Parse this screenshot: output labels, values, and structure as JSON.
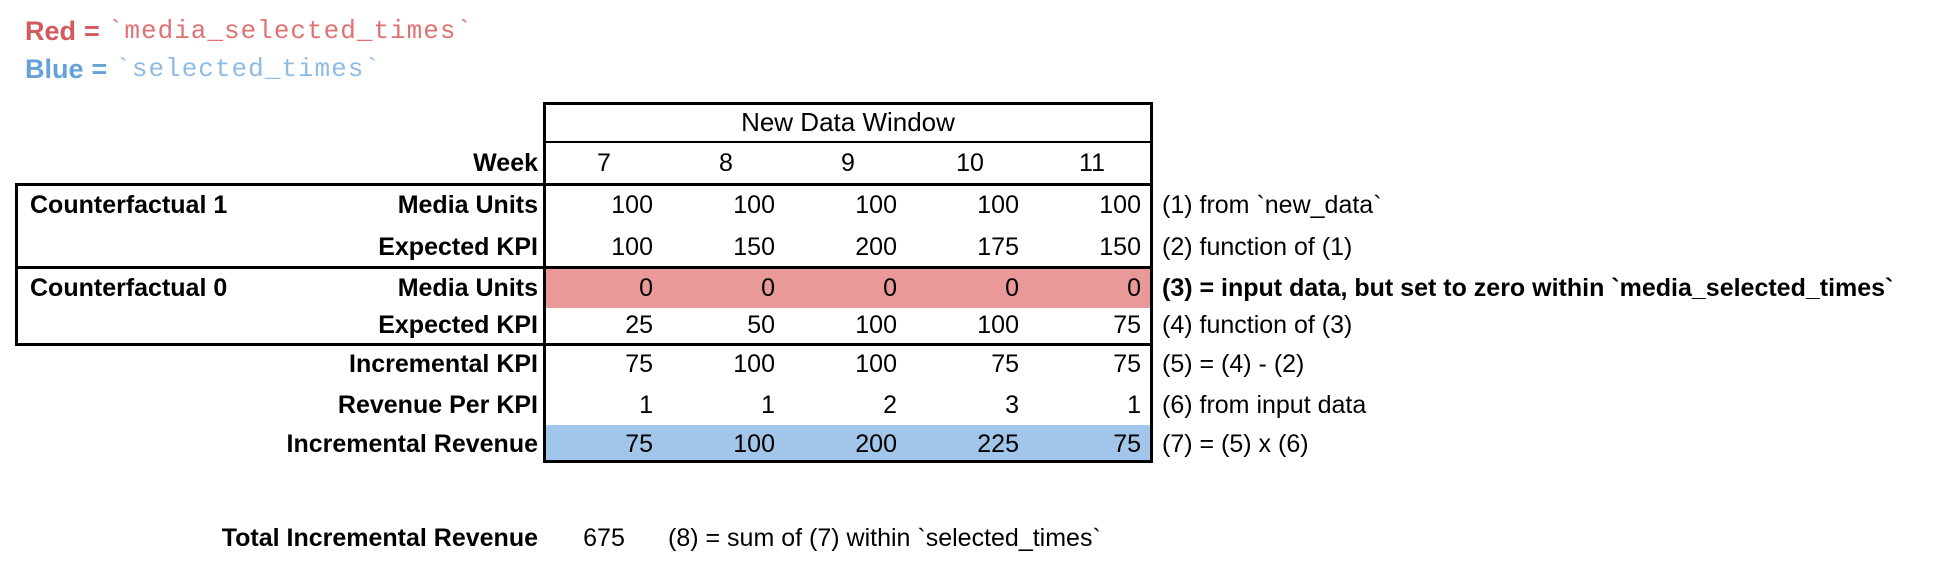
{
  "legend": {
    "lines": [
      {
        "name": "Red",
        "eq": "=",
        "code": "`media_selected_times`"
      },
      {
        "name": "Blue",
        "eq": "=",
        "code": "`selected_times`"
      }
    ]
  },
  "colors": {
    "red_text": "#d5585c",
    "red_code_text": "#e07274",
    "blue_text": "#66a2d9",
    "blue_code_text": "#8fbbe4",
    "red_fill": "#ea9999",
    "blue_fill": "#a2c6e9"
  },
  "table": {
    "window_header": "New Data Window",
    "week_label": "Week",
    "weeks": [
      "7",
      "8",
      "9",
      "10",
      "11"
    ],
    "group_labels": {
      "cf1": "Counterfactual 1",
      "cf0": "Counterfactual 0"
    },
    "rows": [
      {
        "label": "Media Units",
        "values": [
          "100",
          "100",
          "100",
          "100",
          "100"
        ],
        "annotation": "(1) from `new_data`"
      },
      {
        "label": "Expected KPI",
        "values": [
          "100",
          "150",
          "200",
          "175",
          "150"
        ],
        "annotation": "(2) function of (1)"
      },
      {
        "label": "Media Units",
        "values": [
          "0",
          "0",
          "0",
          "0",
          "0"
        ],
        "annotation": "(3) = input data, but set to zero within `media_selected_times`"
      },
      {
        "label": "Expected KPI",
        "values": [
          "25",
          "50",
          "100",
          "100",
          "75"
        ],
        "annotation": "(4) function of (3)"
      },
      {
        "label": "Incremental KPI",
        "values": [
          "75",
          "100",
          "100",
          "75",
          "75"
        ],
        "annotation": "(5) = (4) - (2)"
      },
      {
        "label": "Revenue Per KPI",
        "values": [
          "1",
          "1",
          "2",
          "3",
          "1"
        ],
        "annotation": "(6) from input data"
      },
      {
        "label": "Incremental Revenue",
        "values": [
          "75",
          "100",
          "200",
          "225",
          "75"
        ],
        "annotation": "(7) = (5) x (6)"
      }
    ]
  },
  "total": {
    "label": "Total Incremental Revenue",
    "value": "675",
    "annotation": "(8) = sum of (7) within `selected_times`"
  }
}
